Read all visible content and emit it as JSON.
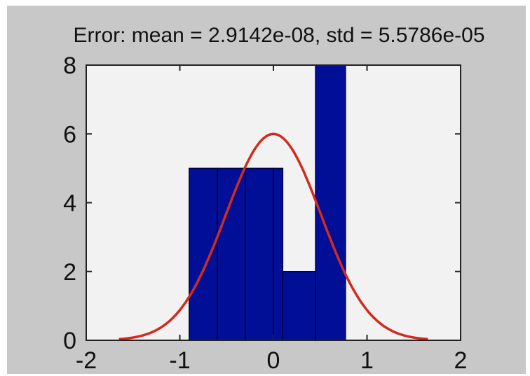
{
  "chart_data": {
    "type": "bar",
    "title": "Error: mean = 2.9142e-08, std = 5.5786e-05",
    "xlabel": "",
    "ylabel": "",
    "xlim": [
      -2,
      2
    ],
    "ylim": [
      0,
      8
    ],
    "xticks": [
      -2,
      -1,
      0,
      1,
      2
    ],
    "yticks": [
      0,
      2,
      4,
      6,
      8
    ],
    "x_tick_labels": [
      "-2",
      "-1",
      "0",
      "1",
      "2"
    ],
    "y_tick_labels": [
      "0",
      "2",
      "4",
      "6",
      "8"
    ],
    "bins": [
      {
        "x0": -0.9,
        "x1": -0.6,
        "count": 5
      },
      {
        "x0": -0.6,
        "x1": -0.3,
        "count": 5
      },
      {
        "x0": -0.3,
        "x1": 0.0,
        "count": 5
      },
      {
        "x0": 0.0,
        "x1": 0.1,
        "count": 5
      },
      {
        "x0": 0.1,
        "x1": 0.45,
        "count": 2
      },
      {
        "x0": 0.45,
        "x1": 0.77,
        "count": 8
      }
    ],
    "fit_curve": {
      "type": "normal",
      "mean": 0.0,
      "sd": 0.51,
      "peak": 6.0,
      "x_range": [
        -1.65,
        1.65
      ]
    },
    "grid": false,
    "colors": {
      "figure_bg": "#c8c8c8",
      "axes_bg": "#f2f2f2",
      "bar_fill": "#000f96",
      "bar_edge": "#000040",
      "curve": "#d42a1e"
    }
  }
}
